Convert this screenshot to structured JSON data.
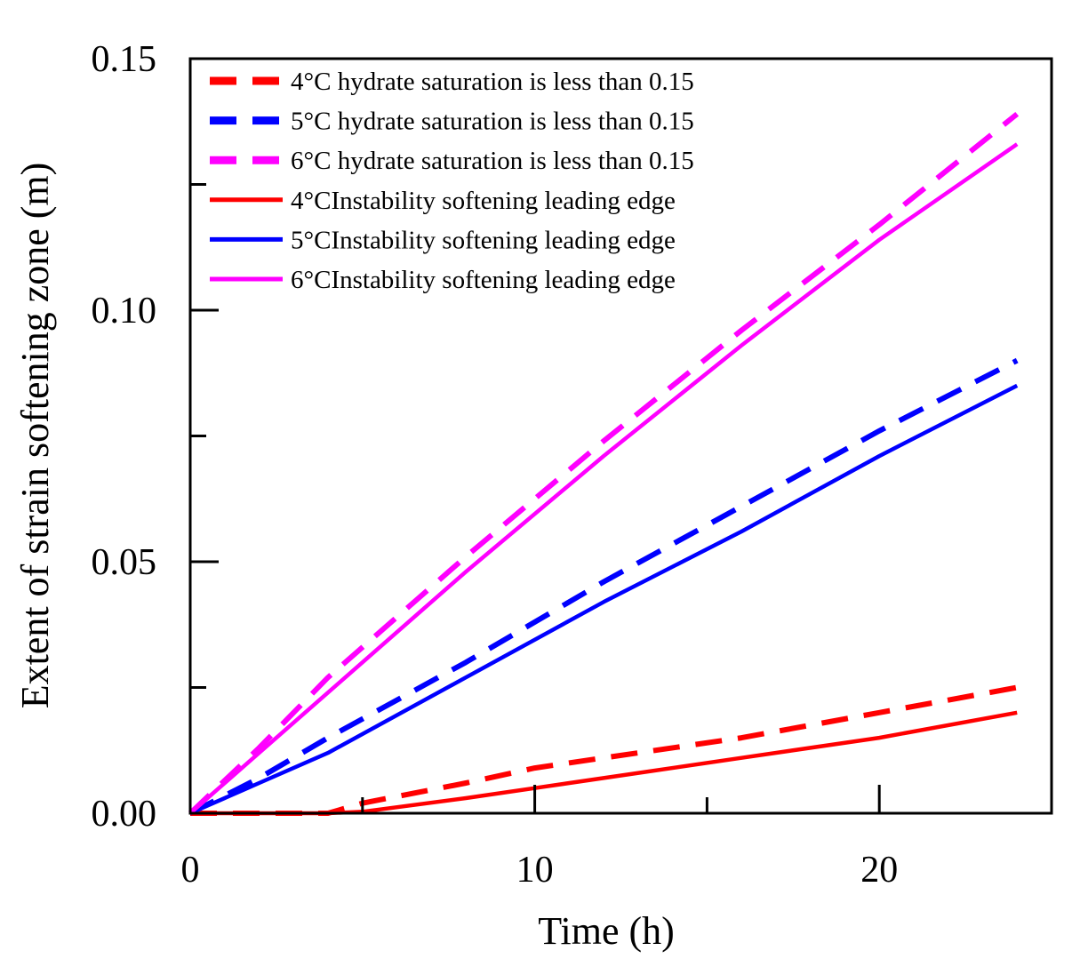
{
  "chart_data": {
    "type": "line",
    "title": "",
    "xlabel": "Time (h)",
    "ylabel": "Extent of strain softening zone (m)",
    "xlim": [
      0,
      25
    ],
    "ylim": [
      0,
      0.15
    ],
    "x_ticks": [
      0,
      10,
      20
    ],
    "x_tick_labels": [
      "0",
      "10",
      "20"
    ],
    "x_minor_ticks": [
      5,
      15
    ],
    "y_ticks": [
      0,
      0.05,
      0.1,
      0.15
    ],
    "y_tick_labels": [
      "0.00",
      "0.05",
      "0.10",
      "0.15"
    ],
    "y_minor_ticks": [
      0.025,
      0.075,
      0.125
    ],
    "grid": false,
    "legend_position": "top-left",
    "series": [
      {
        "name": "4°C hydrate saturation is less than 0.15",
        "color": "#ff0000",
        "style": "dashed",
        "x": [
          0,
          4,
          5,
          8,
          10,
          12,
          16,
          20,
          24
        ],
        "y": [
          0,
          0,
          0.002,
          0.006,
          0.009,
          0.011,
          0.015,
          0.02,
          0.025
        ]
      },
      {
        "name": "5°C hydrate saturation is less than 0.15",
        "color": "#0000ff",
        "style": "dashed",
        "x": [
          0,
          2,
          4,
          8,
          12,
          16,
          20,
          24
        ],
        "y": [
          0,
          0.007,
          0.015,
          0.03,
          0.046,
          0.061,
          0.076,
          0.09
        ]
      },
      {
        "name": "6°C hydrate saturation is less than 0.15",
        "color": "#ff00ff",
        "style": "dashed",
        "x": [
          0,
          2,
          4,
          8,
          12,
          16,
          20,
          24
        ],
        "y": [
          0,
          0.013,
          0.027,
          0.051,
          0.074,
          0.096,
          0.117,
          0.139
        ]
      },
      {
        "name": "4°CInstability softening leading edge",
        "color": "#ff0000",
        "style": "solid",
        "x": [
          0,
          4,
          5,
          8,
          10,
          12,
          16,
          20,
          24
        ],
        "y": [
          0,
          0,
          0.0003,
          0.003,
          0.005,
          0.007,
          0.011,
          0.015,
          0.02
        ]
      },
      {
        "name": "5°CInstability softening leading edge",
        "color": "#0000ff",
        "style": "solid",
        "x": [
          0,
          2,
          4,
          8,
          12,
          16,
          20,
          24
        ],
        "y": [
          0,
          0.006,
          0.012,
          0.027,
          0.042,
          0.056,
          0.071,
          0.085
        ]
      },
      {
        "name": "6°CInstability softening leading edge",
        "color": "#ff00ff",
        "style": "solid",
        "x": [
          0,
          2,
          4,
          8,
          12,
          16,
          20,
          24
        ],
        "y": [
          0,
          0.012,
          0.024,
          0.048,
          0.071,
          0.093,
          0.114,
          0.133
        ]
      }
    ]
  }
}
